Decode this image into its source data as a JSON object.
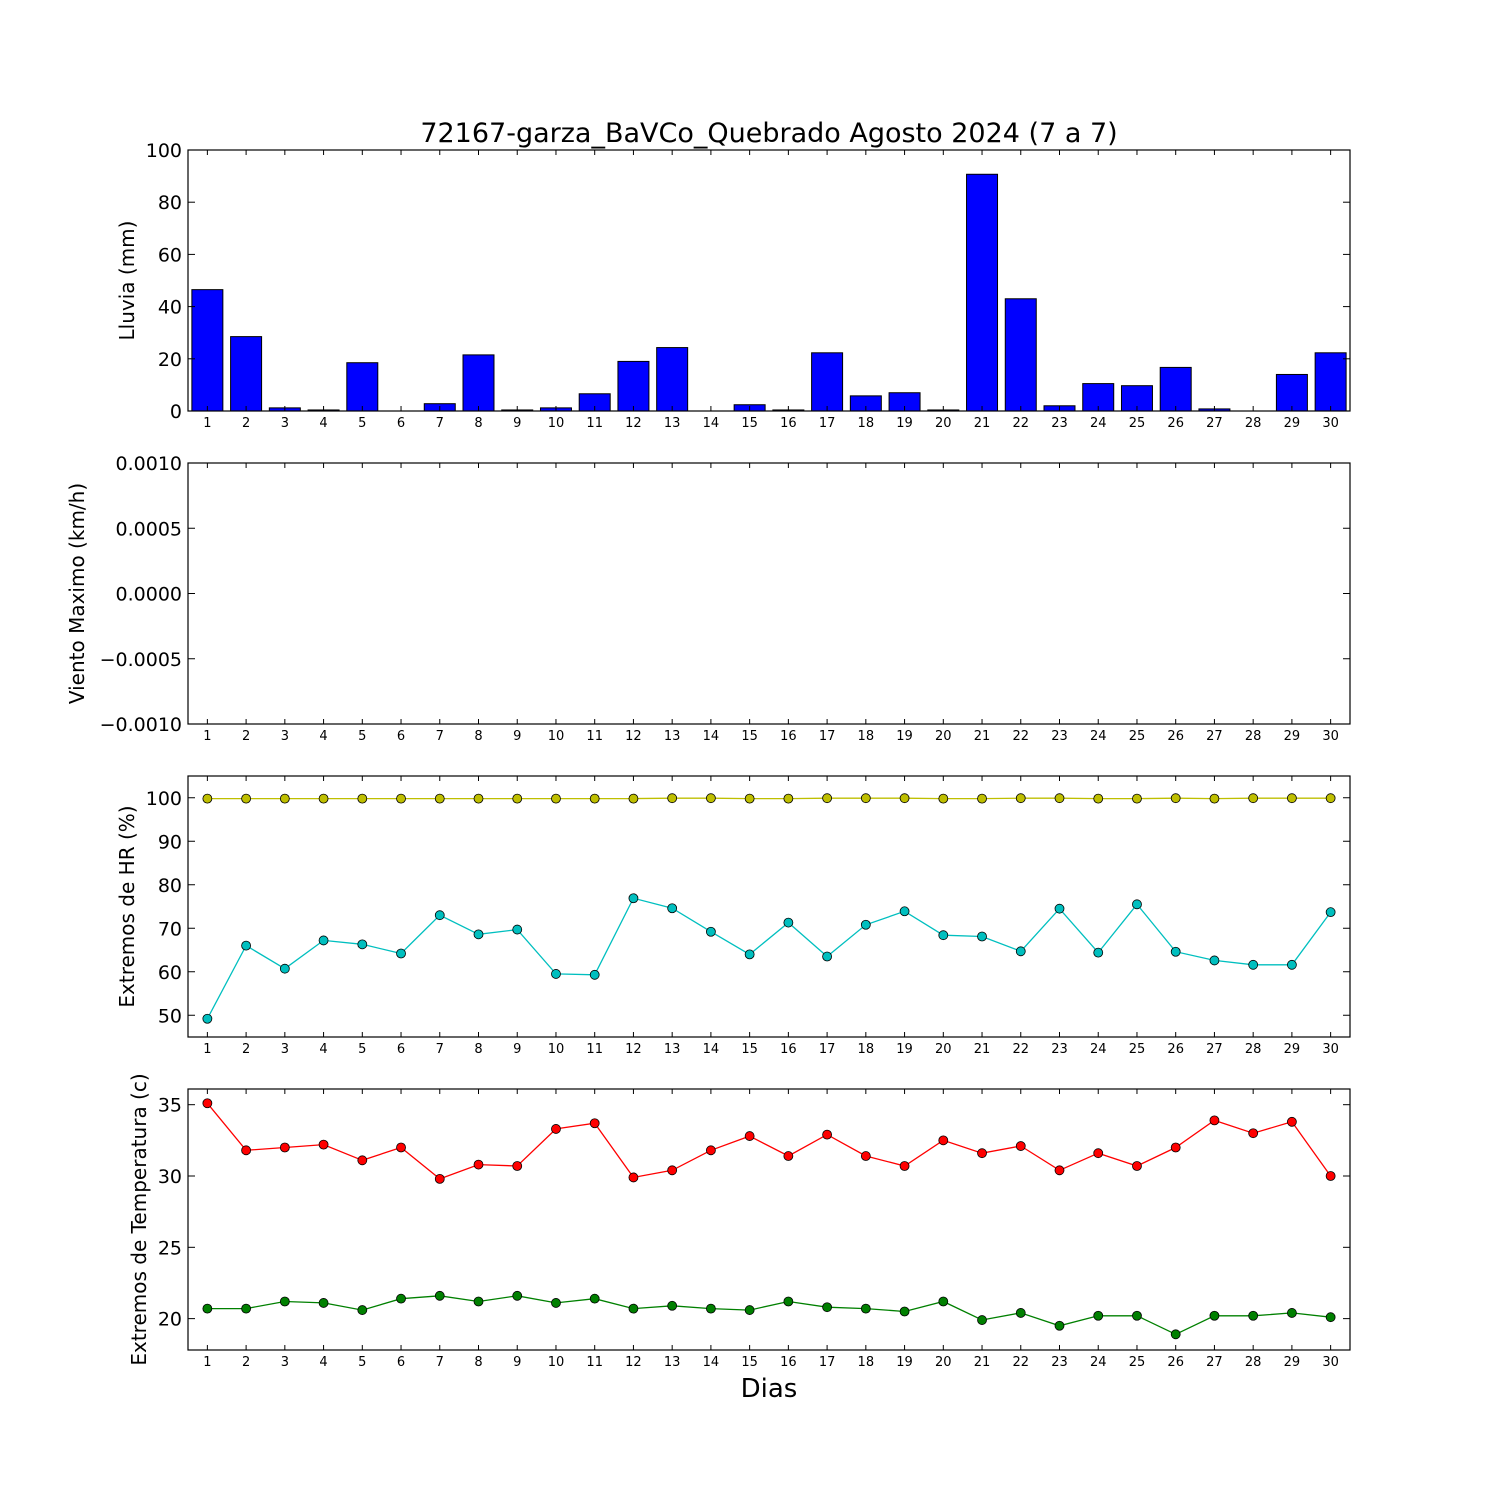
{
  "figure": {
    "title": "72167-garza_BaVCo_Quebrado Agosto 2024  (7 a 7)",
    "xlabel": "Dias"
  },
  "chart_data": [
    {
      "type": "bar",
      "ylabel": "Lluvia (mm)",
      "ylim": [
        0,
        100
      ],
      "yticks": [
        0,
        20,
        40,
        60,
        80,
        100
      ],
      "yticklabels": [
        "0",
        "20",
        "40",
        "60",
        "80",
        "100"
      ],
      "categories": [
        1,
        2,
        3,
        4,
        5,
        6,
        7,
        8,
        9,
        10,
        11,
        12,
        13,
        14,
        15,
        16,
        17,
        18,
        19,
        20,
        21,
        22,
        23,
        24,
        25,
        26,
        27,
        28,
        29,
        30
      ],
      "series": [
        {
          "values": [
            46.5,
            28.5,
            1.2,
            0.4,
            18.5,
            0,
            2.8,
            21.5,
            0.4,
            1.2,
            6.6,
            19,
            24.3,
            0,
            2.4,
            0.4,
            22.3,
            5.8,
            7,
            0.4,
            90.7,
            43,
            2,
            10.5,
            9.7,
            16.7,
            0.8,
            0,
            14,
            22.3
          ],
          "color": "#0000ff"
        }
      ],
      "grid": false
    },
    {
      "type": "line",
      "ylabel": "Viento Maximo (km/h)",
      "ylim": [
        -0.001,
        0.001
      ],
      "yticks": [
        -0.001,
        -0.0005,
        0,
        0.0005,
        0.001
      ],
      "yticklabels": [
        "−0.0010",
        "−0.0005",
        "0.0000",
        "0.0005",
        "0.0010"
      ],
      "categories": [
        1,
        2,
        3,
        4,
        5,
        6,
        7,
        8,
        9,
        10,
        11,
        12,
        13,
        14,
        15,
        16,
        17,
        18,
        19,
        20,
        21,
        22,
        23,
        24,
        25,
        26,
        27,
        28,
        29,
        30
      ],
      "series": [],
      "grid": false
    },
    {
      "type": "line",
      "ylabel": "Extremos de HR (%)",
      "ylim": [
        45,
        105
      ],
      "yticks": [
        50,
        60,
        70,
        80,
        90,
        100
      ],
      "yticklabels": [
        "50",
        "60",
        "70",
        "80",
        "90",
        "100"
      ],
      "categories": [
        1,
        2,
        3,
        4,
        5,
        6,
        7,
        8,
        9,
        10,
        11,
        12,
        13,
        14,
        15,
        16,
        17,
        18,
        19,
        20,
        21,
        22,
        23,
        24,
        25,
        26,
        27,
        28,
        29,
        30
      ],
      "series": [
        {
          "values": [
            99.8,
            99.8,
            99.8,
            99.8,
            99.8,
            99.8,
            99.8,
            99.8,
            99.8,
            99.8,
            99.8,
            99.8,
            99.9,
            99.9,
            99.8,
            99.8,
            99.9,
            99.9,
            99.9,
            99.8,
            99.8,
            99.9,
            99.9,
            99.8,
            99.8,
            99.9,
            99.8,
            99.9,
            99.9,
            99.9
          ],
          "color": "#bfbf00"
        },
        {
          "values": [
            49.2,
            66,
            60.7,
            67.2,
            66.3,
            64.2,
            73,
            68.6,
            69.7,
            59.5,
            59.3,
            76.9,
            74.6,
            69.2,
            64,
            71.3,
            63.5,
            70.8,
            73.9,
            68.4,
            68.1,
            64.7,
            74.5,
            64.4,
            75.5,
            64.6,
            62.6,
            61.6,
            61.6,
            73.7
          ],
          "color": "#00bfbf"
        }
      ],
      "grid": false
    },
    {
      "type": "line",
      "ylabel": "Extremos de Temperatura (c)",
      "ylim": [
        17.8,
        36.1
      ],
      "yticks": [
        20,
        25,
        30,
        35
      ],
      "yticklabels": [
        "20",
        "25",
        "30",
        "35"
      ],
      "categories": [
        1,
        2,
        3,
        4,
        5,
        6,
        7,
        8,
        9,
        10,
        11,
        12,
        13,
        14,
        15,
        16,
        17,
        18,
        19,
        20,
        21,
        22,
        23,
        24,
        25,
        26,
        27,
        28,
        29,
        30
      ],
      "series": [
        {
          "values": [
            35.1,
            31.8,
            32,
            32.2,
            31.1,
            32,
            29.8,
            30.8,
            30.7,
            33.3,
            33.7,
            29.9,
            30.4,
            31.8,
            32.8,
            31.4,
            32.9,
            31.4,
            30.7,
            32.5,
            31.6,
            32.1,
            30.4,
            31.6,
            30.7,
            32,
            33.9,
            33,
            33.8,
            30
          ],
          "color": "#ff0000"
        },
        {
          "values": [
            20.7,
            20.7,
            21.2,
            21.1,
            20.6,
            21.4,
            21.6,
            21.2,
            21.6,
            21.1,
            21.4,
            20.7,
            20.9,
            20.7,
            20.6,
            21.2,
            20.8,
            20.7,
            20.5,
            21.2,
            19.9,
            20.4,
            19.5,
            20.2,
            20.2,
            18.9,
            20.2,
            20.2,
            20.4,
            20.1
          ],
          "color": "#008000"
        }
      ],
      "grid": false
    }
  ]
}
